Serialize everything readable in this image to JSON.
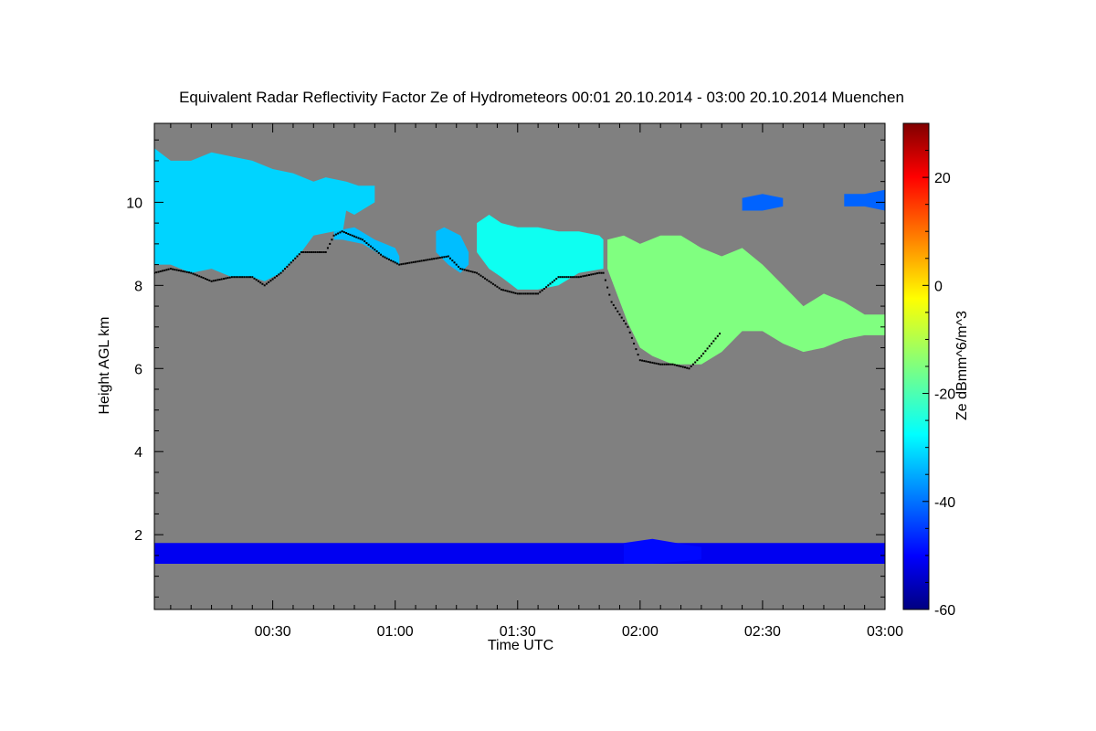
{
  "chart_data": {
    "type": "heatmap",
    "title": "Equivalent Radar Reflectivity Factor Ze of Hydrometeors   00:01 20.10.2014 - 03:00 20.10.2014 Muenchen",
    "xlabel": "Time UTC",
    "ylabel": "Height AGL km",
    "colorbar_label": "Ze dBmm^6/m^3",
    "x_unit": "minutes after 00:00 UTC",
    "xlim": [
      1,
      180
    ],
    "ylim": [
      0.2,
      11.9
    ],
    "clim": [
      -60,
      30
    ],
    "x_ticks": [
      {
        "value": 30,
        "label": "00:30"
      },
      {
        "value": 60,
        "label": "01:00"
      },
      {
        "value": 90,
        "label": "01:30"
      },
      {
        "value": 120,
        "label": "02:00"
      },
      {
        "value": 150,
        "label": "02:30"
      },
      {
        "value": 180,
        "label": "03:00"
      }
    ],
    "y_ticks": [
      {
        "value": 2,
        "label": "2"
      },
      {
        "value": 4,
        "label": "4"
      },
      {
        "value": 6,
        "label": "6"
      },
      {
        "value": 8,
        "label": "8"
      },
      {
        "value": 10,
        "label": "10"
      }
    ],
    "colorbar_ticks": [
      {
        "value": -60,
        "label": "-60"
      },
      {
        "value": -40,
        "label": "-40"
      },
      {
        "value": -20,
        "label": "-20"
      },
      {
        "value": 0,
        "label": "0"
      },
      {
        "value": 20,
        "label": "20"
      }
    ],
    "no_data_color": "#808080",
    "cloud_base_color": "#000000",
    "cloud_layers": [
      {
        "name": "cloud-layer-1",
        "ze_typical": -30,
        "top": [
          [
            1,
            11.3
          ],
          [
            5,
            11.0
          ],
          [
            10,
            11.0
          ],
          [
            15,
            11.2
          ],
          [
            20,
            11.1
          ],
          [
            25,
            11.0
          ],
          [
            30,
            10.8
          ],
          [
            35,
            10.7
          ],
          [
            40,
            10.5
          ],
          [
            43,
            10.6
          ],
          [
            48,
            10.5
          ],
          [
            51,
            10.4
          ],
          [
            55,
            10.4
          ]
        ],
        "base": [
          [
            55,
            10.0
          ],
          [
            50,
            9.7
          ],
          [
            48,
            9.8
          ],
          [
            47,
            9.2
          ],
          [
            45,
            9.3
          ],
          [
            40,
            9.2
          ],
          [
            37,
            8.8
          ],
          [
            32,
            8.3
          ],
          [
            28,
            8.1
          ],
          [
            25,
            8.2
          ],
          [
            20,
            8.2
          ],
          [
            15,
            8.4
          ],
          [
            10,
            8.3
          ],
          [
            5,
            8.5
          ],
          [
            1,
            8.5
          ]
        ]
      },
      {
        "name": "cloud-layer-1-tail",
        "ze_typical": -32,
        "top": [
          [
            45,
            9.3
          ],
          [
            50,
            9.4
          ],
          [
            55,
            9.1
          ],
          [
            60,
            8.9
          ],
          [
            61,
            8.7
          ]
        ],
        "base": [
          [
            61,
            8.5
          ],
          [
            57,
            8.7
          ],
          [
            52,
            9.0
          ],
          [
            47,
            9.1
          ],
          [
            45,
            9.1
          ]
        ]
      },
      {
        "name": "cloud-layer-2",
        "ze_typical": -32,
        "top": [
          [
            70,
            9.3
          ],
          [
            72,
            9.4
          ],
          [
            76,
            9.2
          ],
          [
            78,
            8.8
          ]
        ],
        "base": [
          [
            78,
            8.5
          ],
          [
            76,
            8.3
          ],
          [
            73,
            8.5
          ],
          [
            70,
            8.8
          ]
        ]
      },
      {
        "name": "cloud-layer-3",
        "ze_typical": -25,
        "top": [
          [
            80,
            9.5
          ],
          [
            83,
            9.7
          ],
          [
            86,
            9.5
          ],
          [
            90,
            9.4
          ],
          [
            95,
            9.4
          ],
          [
            100,
            9.3
          ],
          [
            105,
            9.3
          ],
          [
            110,
            9.2
          ],
          [
            111,
            9.1
          ]
        ],
        "base": [
          [
            111,
            8.4
          ],
          [
            105,
            8.3
          ],
          [
            100,
            8.0
          ],
          [
            95,
            7.9
          ],
          [
            90,
            7.9
          ],
          [
            86,
            8.2
          ],
          [
            83,
            8.4
          ],
          [
            80,
            8.8
          ]
        ]
      },
      {
        "name": "cloud-layer-4",
        "ze_typical": -15,
        "top": [
          [
            112,
            9.1
          ],
          [
            116,
            9.2
          ],
          [
            120,
            9.0
          ],
          [
            125,
            9.2
          ],
          [
            130,
            9.2
          ],
          [
            135,
            8.9
          ],
          [
            140,
            8.7
          ],
          [
            145,
            8.9
          ],
          [
            150,
            8.5
          ],
          [
            155,
            8.0
          ],
          [
            160,
            7.5
          ],
          [
            165,
            7.8
          ],
          [
            170,
            7.6
          ],
          [
            175,
            7.3
          ],
          [
            180,
            7.3
          ]
        ],
        "base": [
          [
            180,
            6.8
          ],
          [
            175,
            6.8
          ],
          [
            170,
            6.7
          ],
          [
            165,
            6.5
          ],
          [
            160,
            6.4
          ],
          [
            155,
            6.6
          ],
          [
            150,
            6.9
          ],
          [
            145,
            6.9
          ],
          [
            140,
            6.4
          ],
          [
            135,
            6.1
          ],
          [
            128,
            6.1
          ],
          [
            123,
            6.3
          ],
          [
            120,
            6.5
          ],
          [
            117,
            7.1
          ],
          [
            112,
            8.4
          ]
        ]
      },
      {
        "name": "cloud-layer-5",
        "ze_typical": -40,
        "top": [
          [
            145,
            10.1
          ],
          [
            150,
            10.2
          ],
          [
            155,
            10.1
          ]
        ],
        "base": [
          [
            155,
            9.9
          ],
          [
            150,
            9.8
          ],
          [
            145,
            9.8
          ]
        ]
      },
      {
        "name": "cloud-layer-6",
        "ze_typical": -40,
        "top": [
          [
            170,
            10.2
          ],
          [
            175,
            10.2
          ],
          [
            180,
            10.3
          ]
        ],
        "base": [
          [
            180,
            9.8
          ],
          [
            175,
            9.9
          ],
          [
            170,
            9.9
          ]
        ]
      },
      {
        "name": "low-clutter-band",
        "ze_typical": -50,
        "top": [
          [
            1,
            1.8
          ],
          [
            180,
            1.8
          ]
        ],
        "base": [
          [
            180,
            1.3
          ],
          [
            1,
            1.3
          ]
        ]
      },
      {
        "name": "low-clutter-patch",
        "ze_typical": -48,
        "top": [
          [
            116,
            1.8
          ],
          [
            123,
            1.9
          ],
          [
            135,
            1.7
          ]
        ],
        "base": [
          [
            135,
            1.4
          ],
          [
            123,
            1.3
          ],
          [
            116,
            1.3
          ]
        ]
      }
    ],
    "cloud_base_line": [
      [
        1,
        8.3
      ],
      [
        5,
        8.4
      ],
      [
        10,
        8.3
      ],
      [
        15,
        8.1
      ],
      [
        20,
        8.2
      ],
      [
        25,
        8.2
      ],
      [
        28,
        8.0
      ],
      [
        32,
        8.3
      ],
      [
        37,
        8.8
      ],
      [
        43,
        8.8
      ],
      [
        45,
        9.2
      ],
      [
        47,
        9.3
      ],
      [
        52,
        9.1
      ],
      [
        57,
        8.7
      ],
      [
        61,
        8.5
      ],
      [
        73,
        8.7
      ],
      [
        76,
        8.4
      ],
      [
        80,
        8.3
      ],
      [
        86,
        7.9
      ],
      [
        90,
        7.8
      ],
      [
        95,
        7.8
      ],
      [
        100,
        8.2
      ],
      [
        105,
        8.2
      ],
      [
        110,
        8.3
      ],
      [
        111,
        8.3
      ],
      [
        113,
        7.6
      ],
      [
        117,
        7.0
      ],
      [
        120,
        6.2
      ],
      [
        125,
        6.1
      ],
      [
        128,
        6.1
      ],
      [
        132,
        6.0
      ],
      [
        135,
        6.3
      ],
      [
        140,
        6.9
      ]
    ]
  }
}
